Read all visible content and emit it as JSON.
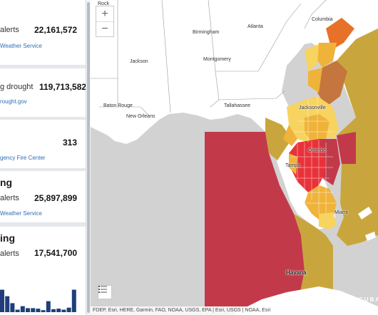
{
  "sidebar": {
    "cards": [
      {
        "title": "",
        "label": "alerts",
        "value": "22,161,572",
        "source": "Weather Service"
      },
      {
        "title": "",
        "label": "g drought",
        "value": "119,713,582",
        "source": "rought.gov"
      },
      {
        "title": "",
        "label": "",
        "value": "313",
        "source": "gency Fire Center"
      },
      {
        "title": "ng",
        "label": "alerts",
        "value": "25,897,899",
        "source": "Weather Service"
      },
      {
        "title": "ing",
        "label": "alerts",
        "value": "17,541,700",
        "source": ""
      }
    ],
    "histogram_values": [
      0.45,
      0.32,
      0.18,
      0.05,
      0.12,
      0.08,
      0.08,
      0.07,
      0.04,
      0.22,
      0.06,
      0.07,
      0.05,
      0.09,
      0.45
    ]
  },
  "map": {
    "zoom_in": "+",
    "zoom_out": "−",
    "cities": {
      "rock": "Rock",
      "columbia": "Columbia",
      "birmingham": "Birmingham",
      "atlanta": "Atlanta",
      "jackson": "Jackson",
      "montgomery": "Montgomery",
      "baton_rouge": "Baton Rouge",
      "new_orleans": "New Orleans",
      "tallahassee": "Tallahassee",
      "jacksonville": "Jacksonville",
      "orlando": "Orlando",
      "tampa": "Tampa",
      "miami": "Miami",
      "havana": "Havana"
    },
    "country_label": "CUBA",
    "attribution": "FDEP, Esri, HERE, Garmin, FAO, NOAA, USGS, EPA | Esri, USGS | NOAA, Esri",
    "colors": {
      "land": "#ffffff",
      "water": "#d2d2d2",
      "extreme": "#c23a4a",
      "red": "#e8323a",
      "orange": "#e8712a",
      "amber": "#f0b33a",
      "yellow": "#f7d360",
      "olive": "#c9a63d",
      "brown": "#c4763e"
    },
    "icons": [
      "plus-icon",
      "minus-icon",
      "legend-list-icon"
    ]
  }
}
